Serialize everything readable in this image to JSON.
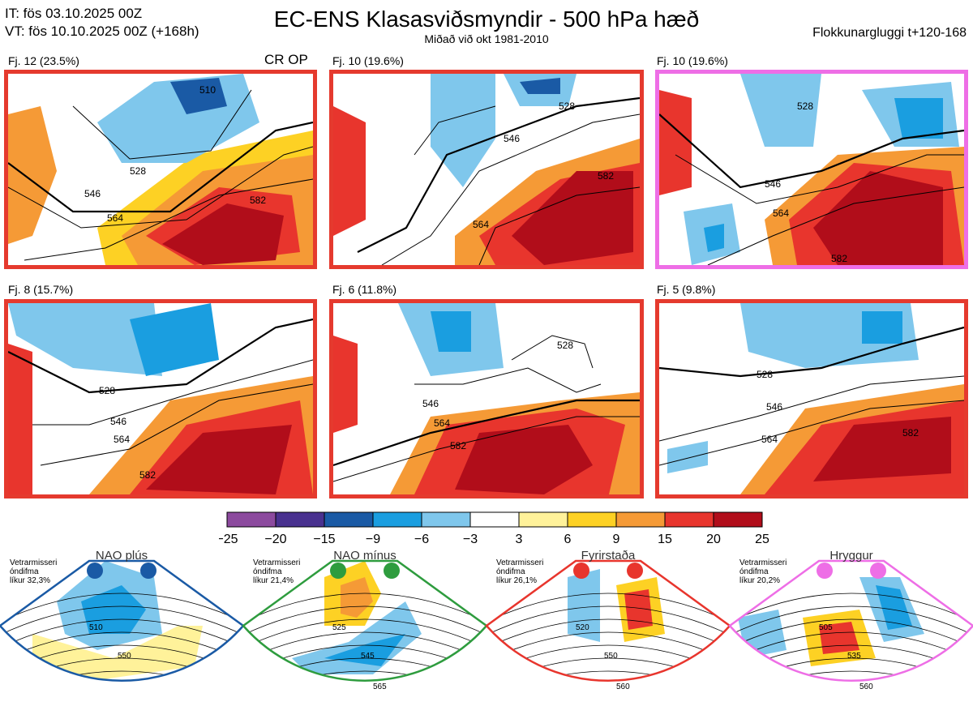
{
  "header": {
    "it_line": "IT: fös 03.10.2025 00Z",
    "vt_line": "VT: fös 10.10.2025 00Z  (+168h)",
    "title": "EC-ENS Klasasviðsmyndir - 500 hPa hæð",
    "subtitle": "Miðað við okt 1981-2010",
    "window": "Flokkunargluggi t+120-168"
  },
  "panels": [
    {
      "label": "Fj. 12 (23.5%)",
      "tag": "CR OP",
      "border": "#e53a2e",
      "contours": [
        "528",
        "546",
        "564",
        "582",
        "510"
      ]
    },
    {
      "label": "Fj. 10 (19.6%)",
      "tag": "",
      "border": "#e53a2e",
      "contours": [
        "528",
        "546",
        "564",
        "582"
      ]
    },
    {
      "label": "Fj. 10 (19.6%)",
      "tag": "",
      "border": "#ee6ee6",
      "contours": [
        "528",
        "546",
        "564",
        "582"
      ]
    },
    {
      "label": "Fj. 8 (15.7%)",
      "tag": "",
      "border": "#e53a2e",
      "contours": [
        "528",
        "546",
        "564",
        "582"
      ]
    },
    {
      "label": "Fj. 6 (11.8%)",
      "tag": "",
      "border": "#e53a2e",
      "contours": [
        "528",
        "546",
        "564",
        "582"
      ]
    },
    {
      "label": "Fj. 5 (9.8%)",
      "tag": "",
      "border": "#e53a2e",
      "contours": [
        "528",
        "546",
        "564",
        "582"
      ]
    }
  ],
  "colorbar": {
    "colors": [
      "#8c4a9e",
      "#49318f",
      "#1a5aa5",
      "#1a9ee0",
      "#7fc7ec",
      "#ffffff",
      "#fff29a",
      "#fdd124",
      "#f59a36",
      "#e8352d",
      "#b10d1a"
    ],
    "ticks": [
      "−25",
      "−20",
      "−15",
      "−9",
      "−6",
      "−3",
      "3",
      "6",
      "9",
      "15",
      "20",
      "25"
    ]
  },
  "regimes": [
    {
      "name": "NAO plús",
      "color": "#1a5aa5",
      "text": [
        "Vetrarmisseri",
        "óndifma",
        "líkur 32,3%"
      ],
      "contours": [
        "510",
        "550"
      ]
    },
    {
      "name": "NAO mínus",
      "color": "#2e9c3e",
      "text": [
        "Vetrarmisseri",
        "óndifma",
        "líkur 21,4%"
      ],
      "contours": [
        "525",
        "545",
        "565"
      ]
    },
    {
      "name": "Fyrirstaða",
      "color": "#e8352d",
      "text": [
        "Vetrarmisseri",
        "óndifma",
        "líkur 26,1%"
      ],
      "contours": [
        "520",
        "550",
        "560"
      ]
    },
    {
      "name": "Hryggur",
      "color": "#ee6ee6",
      "text": [
        "Vetrarmisseri",
        "óndifma",
        "líkur 20,2%"
      ],
      "contours": [
        "505",
        "535",
        "560"
      ]
    }
  ],
  "chart_data": {
    "type": "heatmap",
    "title": "EC-ENS Klasasviðsmyndir - 500 hPa hæð",
    "variable": "500 hPa height anomaly",
    "legend_levels": [
      -25,
      -20,
      -15,
      -9,
      -6,
      -3,
      3,
      6,
      9,
      15,
      20,
      25
    ],
    "clusters": [
      {
        "label": "Fj. 12",
        "percent": 23.5
      },
      {
        "label": "Fj. 10",
        "percent": 19.6
      },
      {
        "label": "Fj. 10",
        "percent": 19.6
      },
      {
        "label": "Fj. 8",
        "percent": 15.7
      },
      {
        "label": "Fj. 6",
        "percent": 11.8
      },
      {
        "label": "Fj. 5",
        "percent": 9.8
      }
    ],
    "regime_probabilities": [
      {
        "name": "NAO plús",
        "percent": 32.3
      },
      {
        "name": "NAO mínus",
        "percent": 21.4
      },
      {
        "name": "Fyrirstaða",
        "percent": 26.1
      },
      {
        "name": "Hryggur",
        "percent": 20.2
      }
    ]
  }
}
